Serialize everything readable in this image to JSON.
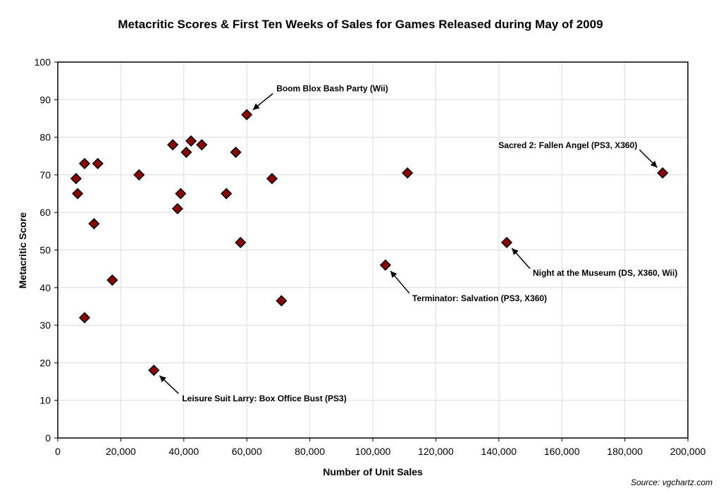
{
  "chart_data": {
    "type": "scatter",
    "title": "Metacritic Scores & First Ten Weeks of Sales for Games Released during May of 2009",
    "xlabel": "Number of Unit Sales",
    "ylabel": "Metacritic Score",
    "xlim": [
      0,
      200000
    ],
    "ylim": [
      0,
      100
    ],
    "xticks": [
      "0",
      "20,000",
      "40,000",
      "60,000",
      "80,000",
      "100,000",
      "120,000",
      "140,000",
      "160,000",
      "180,000",
      "200,000"
    ],
    "yticks": [
      "0",
      "10",
      "20",
      "30",
      "40",
      "50",
      "60",
      "70",
      "80",
      "90",
      "100"
    ],
    "grid": true,
    "marker_color": "#8b0000",
    "points": [
      {
        "x": 5800,
        "y": 69
      },
      {
        "x": 6300,
        "y": 65
      },
      {
        "x": 8500,
        "y": 73
      },
      {
        "x": 8500,
        "y": 32
      },
      {
        "x": 11500,
        "y": 57
      },
      {
        "x": 12700,
        "y": 73
      },
      {
        "x": 17300,
        "y": 42
      },
      {
        "x": 25800,
        "y": 70
      },
      {
        "x": 30500,
        "y": 18
      },
      {
        "x": 36500,
        "y": 78
      },
      {
        "x": 38000,
        "y": 61
      },
      {
        "x": 39000,
        "y": 65
      },
      {
        "x": 40800,
        "y": 76
      },
      {
        "x": 42300,
        "y": 79
      },
      {
        "x": 45700,
        "y": 78
      },
      {
        "x": 53500,
        "y": 65
      },
      {
        "x": 56500,
        "y": 76
      },
      {
        "x": 58000,
        "y": 52
      },
      {
        "x": 60000,
        "y": 86
      },
      {
        "x": 68000,
        "y": 69
      },
      {
        "x": 71000,
        "y": 36.5
      },
      {
        "x": 104000,
        "y": 46
      },
      {
        "x": 111000,
        "y": 70.5
      },
      {
        "x": 142500,
        "y": 52
      },
      {
        "x": 192000,
        "y": 70.5
      }
    ],
    "annotations": [
      {
        "text": "Boom Blox Bash Party (Wii)",
        "x": 60000,
        "y": 86
      },
      {
        "text": "Sacred 2: Fallen Angel (PS3, X360)",
        "x": 192000,
        "y": 70.5
      },
      {
        "text": "Night at the Museum (DS, X360, Wii)",
        "x": 142500,
        "y": 52
      },
      {
        "text": "Terminator: Salvation (PS3, X360)",
        "x": 104000,
        "y": 46
      },
      {
        "text": "Leisure Suit Larry: Box Office Bust (PS3)",
        "x": 30500,
        "y": 18
      }
    ]
  },
  "source": "Source: vgchartz.com"
}
